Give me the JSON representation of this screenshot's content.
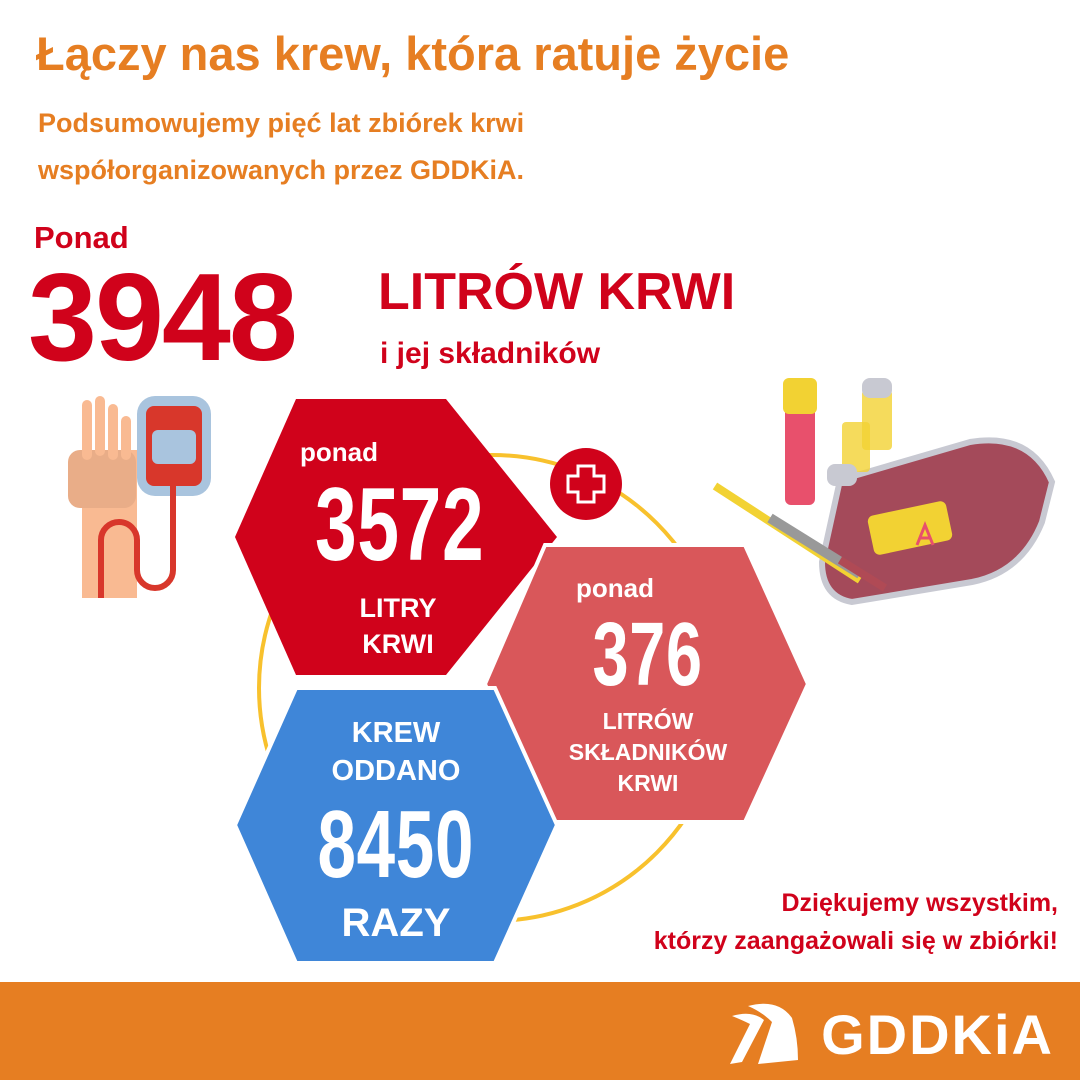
{
  "header": {
    "title": "Łączy nas krew, która ratuje życie",
    "subtitle_lines": [
      "Podsumowujemy pięć lat zbiórek krwi",
      "współorganizowanych przez GDDKiA."
    ]
  },
  "total": {
    "prefix": "Ponad",
    "value": "3948",
    "unit": "LITRÓW KRWI",
    "suffix": "i jej składników"
  },
  "hex_blood": {
    "prefix": "ponad",
    "value": "3572",
    "line1": "LITRY",
    "line2": "KRWI",
    "color": "#D0021B"
  },
  "hex_components": {
    "prefix": "ponad",
    "value": "376",
    "line1": "LITRÓW",
    "line2": "SKŁADNIKÓW",
    "line3": "KRWI",
    "color": "#D9575A"
  },
  "hex_donations": {
    "line1": "KREW",
    "line2": "ODDANO",
    "value": "8450",
    "line3": "RAZY",
    "color": "#3F86D8"
  },
  "thanks": {
    "line1": "Dziękujemy wszystkim,",
    "line2": "którzy zaangażowali się w zbiórki!"
  },
  "footer": {
    "brand": "GDDKiA",
    "color": "#E67E22"
  },
  "icons": [
    "hand-blood-bag-icon",
    "medical-cross-icon",
    "blood-bag-vials-syringe-icon",
    "gddkia-logo-icon"
  ]
}
